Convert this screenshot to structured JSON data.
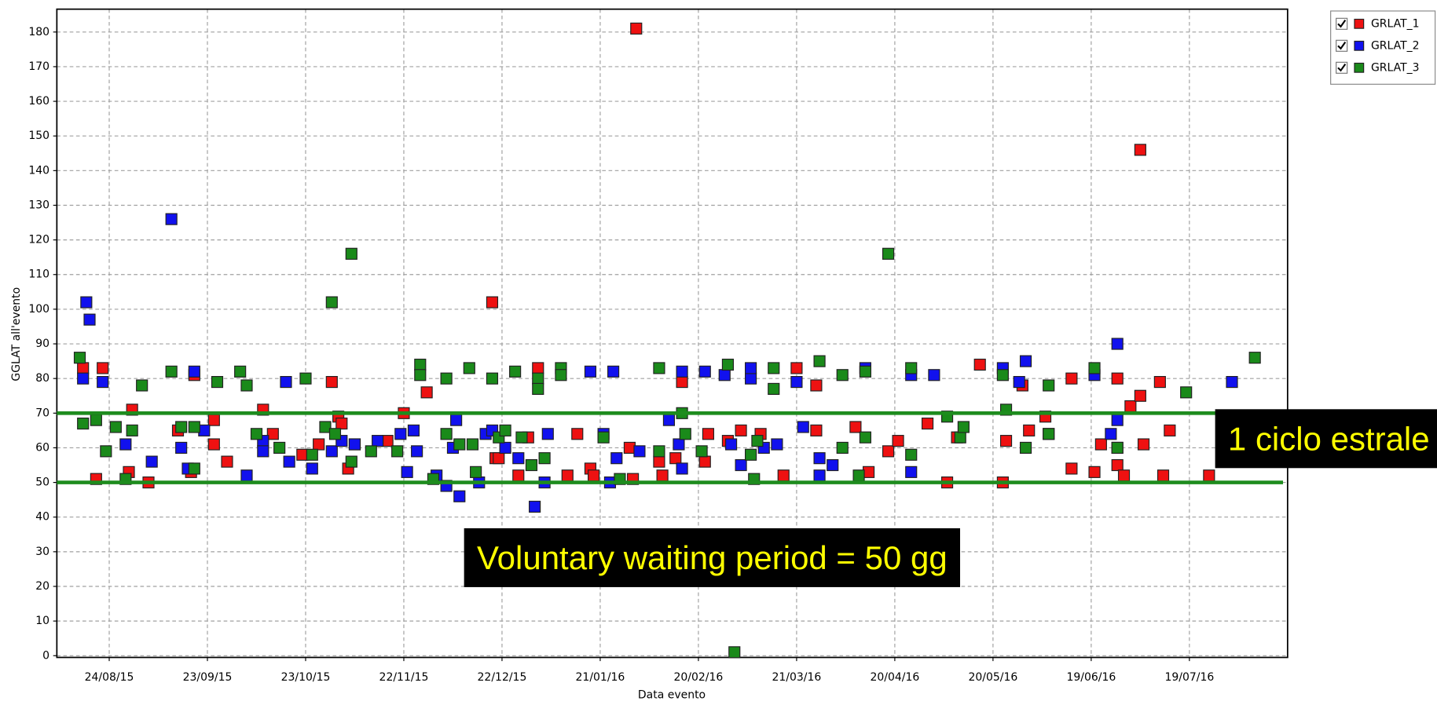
{
  "chart_data": {
    "type": "scatter",
    "ylabel": "GGLAT all'evento",
    "xlabel": "Data evento",
    "xlim": [
      "08/08/15",
      "18/08/16"
    ],
    "xticks": [
      "24/08/15",
      "23/09/15",
      "23/10/15",
      "22/11/15",
      "22/12/15",
      "21/01/16",
      "20/02/16",
      "21/03/16",
      "20/04/16",
      "20/05/16",
      "19/06/16",
      "19/07/16"
    ],
    "ylim": [
      -0.5,
      186.6
    ],
    "yticks": [
      0,
      10,
      20,
      30,
      40,
      50,
      60,
      70,
      80,
      90,
      100,
      110,
      120,
      130,
      140,
      150,
      160,
      170,
      180
    ],
    "grid": true,
    "legend": "upper right",
    "reference_lines": [
      {
        "value": 70,
        "color": "#1e8c1e"
      },
      {
        "value": 50,
        "color": "#1e8c1e"
      }
    ],
    "annotations": [
      {
        "text": "1 ciclo estrale"
      },
      {
        "text": "Voluntary waiting period = 50 gg"
      }
    ],
    "series": [
      {
        "name": "GRLAT_1",
        "color": "#ee1111",
        "x": [
          "16/08/15",
          "20/08/15",
          "22/08/15",
          "30/08/15",
          "31/08/15",
          "05/09/15",
          "14/09/15",
          "18/09/15",
          "19/09/15",
          "25/09/15",
          "25/09/15",
          "29/09/15",
          "10/10/15",
          "13/10/15",
          "22/10/15",
          "27/10/15",
          "31/10/15",
          "02/11/15",
          "03/11/15",
          "05/11/15",
          "07/11/15",
          "17/11/15",
          "22/11/15",
          "29/11/15",
          "19/12/15",
          "20/12/15",
          "21/12/15",
          "27/12/15",
          "30/12/15",
          "02/01/16",
          "11/01/16",
          "14/01/16",
          "18/01/16",
          "19/01/16",
          "30/01/16",
          "31/01/16",
          "01/02/16",
          "08/02/16",
          "09/02/16",
          "13/02/16",
          "15/02/16",
          "22/02/16",
          "23/02/16",
          "29/02/16",
          "04/03/16",
          "10/03/16",
          "17/03/16",
          "21/03/16",
          "27/03/16",
          "27/03/16",
          "08/04/16",
          "12/04/16",
          "18/04/16",
          "21/04/16",
          "30/04/16",
          "06/05/16",
          "09/05/16",
          "16/05/16",
          "23/05/16",
          "24/05/16",
          "29/05/16",
          "31/05/16",
          "05/06/16",
          "13/06/16",
          "13/06/16",
          "20/06/16",
          "22/06/16",
          "27/06/16",
          "27/06/16",
          "29/06/16",
          "01/07/16",
          "04/07/16",
          "04/07/16",
          "05/07/16",
          "10/07/16",
          "11/07/16",
          "13/07/16",
          "25/07/16"
        ],
        "values": [
          83,
          51,
          83,
          53,
          71,
          50,
          65,
          53,
          81,
          61,
          68,
          56,
          71,
          64,
          58,
          61,
          79,
          69,
          67,
          54,
          61,
          62,
          70,
          76,
          102,
          57,
          57,
          52,
          63,
          83,
          52,
          64,
          54,
          52,
          60,
          51,
          181,
          56,
          52,
          57,
          79,
          56,
          64,
          62,
          65,
          64,
          52,
          83,
          78,
          65,
          66,
          53,
          59,
          62,
          67,
          50,
          63,
          84,
          50,
          62,
          78,
          65,
          69,
          54,
          80,
          53,
          61,
          80,
          55,
          52,
          72,
          75,
          146,
          61,
          79,
          52,
          65,
          52
        ]
      },
      {
        "name": "GRLAT_2",
        "color": "#1111ee",
        "x": [
          "16/08/15",
          "17/08/15",
          "18/08/15",
          "22/08/15",
          "29/08/15",
          "06/09/15",
          "12/09/15",
          "15/09/15",
          "17/09/15",
          "19/09/15",
          "22/09/15",
          "05/10/15",
          "10/10/15",
          "10/10/15",
          "17/10/15",
          "18/10/15",
          "25/10/15",
          "31/10/15",
          "03/11/15",
          "07/11/15",
          "14/11/15",
          "21/11/15",
          "23/11/15",
          "25/11/15",
          "26/11/15",
          "02/12/15",
          "05/12/15",
          "07/12/15",
          "08/12/15",
          "09/12/15",
          "15/12/15",
          "17/12/15",
          "19/12/15",
          "23/12/15",
          "27/12/15",
          "01/01/16",
          "04/01/16",
          "05/01/16",
          "18/01/16",
          "22/01/16",
          "24/01/16",
          "25/01/16",
          "26/01/16",
          "02/02/16",
          "11/02/16",
          "14/02/16",
          "15/02/16",
          "15/02/16",
          "22/02/16",
          "28/02/16",
          "01/03/16",
          "04/03/16",
          "07/03/16",
          "07/03/16",
          "11/03/16",
          "15/03/16",
          "21/03/16",
          "23/03/16",
          "28/03/16",
          "28/03/16",
          "01/04/16",
          "11/04/16",
          "25/04/16",
          "25/04/16",
          "02/05/16",
          "23/05/16",
          "28/05/16",
          "30/05/16",
          "06/06/16",
          "20/06/16",
          "25/06/16",
          "27/06/16",
          "27/06/16",
          "27/06/16",
          "01/08/16"
        ],
        "values": [
          80,
          102,
          97,
          79,
          61,
          56,
          126,
          60,
          54,
          82,
          65,
          52,
          62,
          59,
          79,
          56,
          54,
          59,
          62,
          61,
          62,
          64,
          53,
          65,
          59,
          52,
          49,
          60,
          68,
          46,
          50,
          64,
          65,
          60,
          57,
          43,
          50,
          64,
          82,
          64,
          50,
          82,
          57,
          59,
          68,
          61,
          54,
          82,
          82,
          81,
          61,
          55,
          80,
          83,
          60,
          61,
          79,
          66,
          57,
          52,
          55,
          83,
          53,
          81,
          81,
          83,
          79,
          85,
          64,
          81,
          64,
          90,
          60,
          68,
          79
        ]
      },
      {
        "name": "GRLAT_3",
        "color": "#1a8a1a",
        "x": [
          "15/08/15",
          "16/08/15",
          "20/08/15",
          "23/08/15",
          "26/08/15",
          "29/08/15",
          "31/08/15",
          "03/09/15",
          "12/09/15",
          "15/09/15",
          "19/09/15",
          "19/09/15",
          "26/09/15",
          "03/10/15",
          "05/10/15",
          "08/10/15",
          "15/10/15",
          "23/10/15",
          "25/10/15",
          "29/10/15",
          "31/10/15",
          "01/11/15",
          "06/11/15",
          "06/11/15",
          "12/11/15",
          "20/11/15",
          "27/11/15",
          "27/11/15",
          "01/12/15",
          "05/12/15",
          "05/12/15",
          "09/12/15",
          "12/12/15",
          "13/12/15",
          "14/12/15",
          "19/12/15",
          "21/12/15",
          "23/12/15",
          "26/12/15",
          "28/12/15",
          "31/12/15",
          "02/01/16",
          "02/01/16",
          "04/01/16",
          "09/01/16",
          "09/01/16",
          "22/01/16",
          "27/01/16",
          "08/02/16",
          "08/02/16",
          "15/02/16",
          "16/02/16",
          "21/02/16",
          "29/02/16",
          "02/03/16",
          "07/03/16",
          "08/03/16",
          "09/03/16",
          "14/03/16",
          "14/03/16",
          "28/03/16",
          "04/04/16",
          "04/04/16",
          "09/04/16",
          "11/04/16",
          "11/04/16",
          "18/04/16",
          "25/04/16",
          "25/04/16",
          "06/05/16",
          "10/05/16",
          "11/05/16",
          "23/05/16",
          "24/05/16",
          "30/05/16",
          "06/06/16",
          "06/06/16",
          "20/06/16",
          "27/06/16",
          "18/07/16",
          "08/08/16"
        ],
        "values": [
          86,
          67,
          68,
          59,
          66,
          51,
          65,
          78,
          82,
          66,
          66,
          54,
          79,
          82,
          78,
          64,
          60,
          80,
          58,
          66,
          102,
          64,
          116,
          56,
          59,
          59,
          84,
          81,
          51,
          80,
          64,
          61,
          83,
          61,
          53,
          80,
          63,
          65,
          82,
          63,
          55,
          80,
          77,
          57,
          83,
          81,
          63,
          51,
          83,
          59,
          70,
          64,
          59,
          84,
          1,
          58,
          51,
          62,
          83,
          77,
          85,
          60,
          81,
          52,
          82,
          63,
          116,
          83,
          58,
          69,
          63,
          66,
          81,
          71,
          60,
          78,
          64,
          83,
          60,
          76,
          86
        ]
      }
    ]
  }
}
